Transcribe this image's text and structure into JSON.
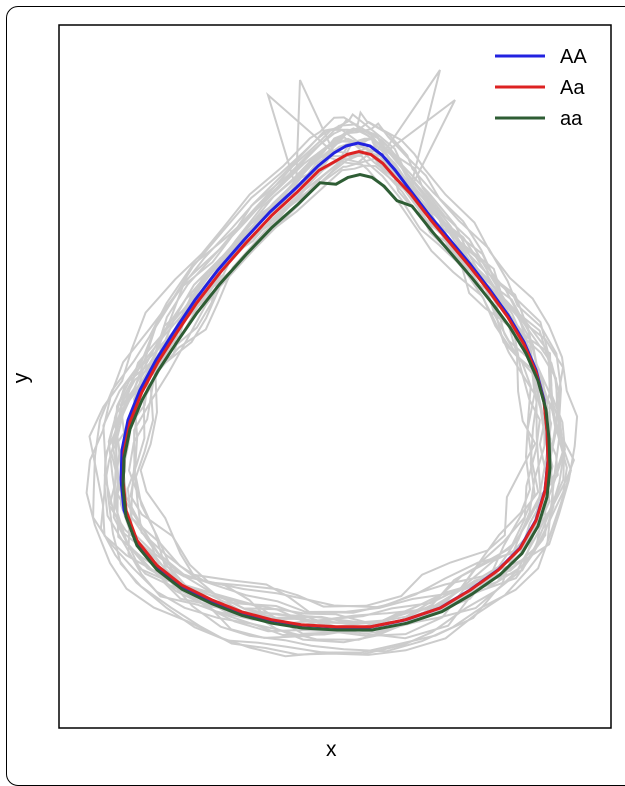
{
  "chart_data": {
    "type": "line",
    "title": "",
    "xlabel": "x",
    "ylabel": "y",
    "grid": false,
    "legend_position": "top-right",
    "background_traces": {
      "color": "#cccccc",
      "count": 24
    },
    "series": [
      {
        "name": "AA",
        "color": "#2222e0"
      },
      {
        "name": "Aa",
        "color": "#dd2222"
      },
      {
        "name": "aa",
        "color": "#2e5d34"
      }
    ]
  }
}
